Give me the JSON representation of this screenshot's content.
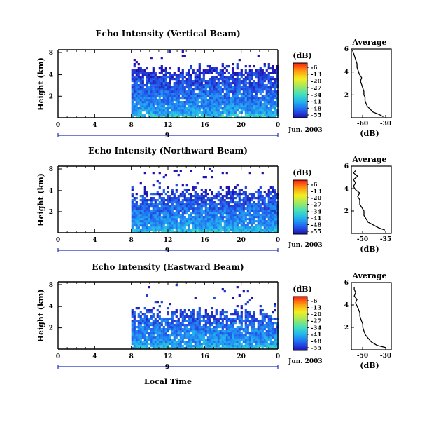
{
  "colorscale": {
    "unit_label": "(dB)",
    "ticks": [
      "-6",
      "-13",
      "-20",
      "-27",
      "-34",
      "-41",
      "-48",
      "-55"
    ],
    "stops": [
      "#ff1a10",
      "#ff9a10",
      "#f4ee20",
      "#9fe860",
      "#40e0c0",
      "#20b0f0",
      "#2060f0",
      "#2010b0"
    ]
  },
  "xaxis": {
    "ticks": [
      "0",
      "4",
      "8",
      "12",
      "16",
      "20",
      "0"
    ],
    "date_tick": "9",
    "date_label": "Jun. 2003",
    "xlabel": "Local Time"
  },
  "chart_data": [
    {
      "type": "heatmap",
      "title": "Echo Intensity (Vertical Beam)",
      "ylabel": "Height (km)",
      "yticks": [
        "8",
        "4",
        "2"
      ],
      "xlim": [
        0,
        24
      ],
      "data_start_hour": 8,
      "profile": {
        "title": "Average",
        "xlabel": "(dB)",
        "xticks": [
          "-60",
          "-30"
        ],
        "yticks": [
          "6",
          "4",
          "2"
        ],
        "xlim": [
          -60,
          -25
        ],
        "ylim": [
          0,
          6
        ],
        "height_km": [
          0.1,
          0.3,
          0.5,
          0.8,
          1.0,
          1.2,
          1.5,
          1.8,
          2.0,
          2.3,
          2.6,
          2.9,
          3.2,
          3.5,
          3.8,
          4.1,
          4.4,
          4.7,
          5.0,
          5.3,
          5.6,
          5.9
        ],
        "values_db": [
          -32,
          -36,
          -41,
          -44,
          -46,
          -47,
          -48,
          -48,
          -49,
          -49,
          -50,
          -51,
          -52,
          -51,
          -53,
          -54,
          -55,
          -55,
          -56,
          -57,
          -58,
          -59
        ]
      },
      "field": {
        "seed": 11,
        "top_km": 4.6,
        "floor": 0.3
      }
    },
    {
      "type": "heatmap",
      "title": "Echo Intensity (Northward Beam)",
      "ylabel": "Height (km)",
      "yticks": [
        "8",
        "4",
        "2"
      ],
      "xlim": [
        0,
        24
      ],
      "data_start_hour": 8,
      "profile": {
        "title": "Average",
        "xlabel": "(dB)",
        "xticks": [
          "-50",
          "-35"
        ],
        "yticks": [
          "6",
          "4",
          "2"
        ],
        "xlim": [
          -52,
          -33
        ],
        "ylim": [
          0,
          6
        ],
        "height_km": [
          0.3,
          0.5,
          0.8,
          1.0,
          1.3,
          1.6,
          2.0,
          2.3,
          2.6,
          3.0,
          3.3,
          3.6,
          3.9,
          4.2,
          4.5,
          4.8,
          5.1,
          5.4,
          5.6
        ],
        "values_db": [
          -36,
          -39,
          -42,
          -44,
          -45,
          -46,
          -46,
          -47,
          -48,
          -48,
          -49,
          -48,
          -50,
          -51,
          -50,
          -51,
          -49,
          -51,
          -50
        ]
      },
      "field": {
        "seed": 23,
        "top_km": 4.0,
        "floor": 0.25
      }
    },
    {
      "type": "heatmap",
      "title": "Echo Intensity (Eastward Beam)",
      "ylabel": "Height (km)",
      "yticks": [
        "8",
        "4",
        "2"
      ],
      "xlim": [
        0,
        24
      ],
      "data_start_hour": 8,
      "profile": {
        "title": "Average",
        "xlabel": "(dB)",
        "xticks": [
          "-50",
          "-30"
        ],
        "yticks": [
          "6",
          "4",
          "2"
        ],
        "xlim": [
          -54,
          -26
        ],
        "ylim": [
          0,
          6
        ],
        "height_km": [
          0.2,
          0.4,
          0.7,
          1.0,
          1.3,
          1.6,
          2.0,
          2.3,
          2.6,
          3.0,
          3.3,
          3.6,
          3.9,
          4.2,
          4.5,
          4.8,
          5.1,
          5.4,
          5.6
        ],
        "values_db": [
          -30,
          -36,
          -40,
          -42,
          -44,
          -45,
          -46,
          -46,
          -47,
          -48,
          -48,
          -49,
          -50,
          -51,
          -50,
          -52,
          -51,
          -52,
          -52
        ]
      },
      "field": {
        "seed": 37,
        "top_km": 3.4,
        "floor": 0.2
      }
    }
  ]
}
